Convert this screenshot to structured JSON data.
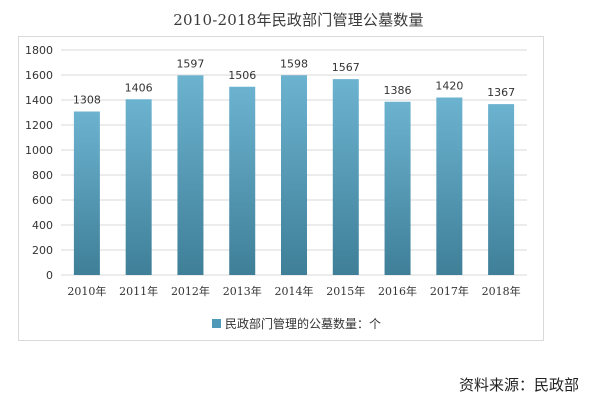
{
  "chart_data": {
    "type": "bar",
    "title": "2010-2018年民政部门管理公墓数量",
    "categories": [
      "2010年",
      "2011年",
      "2012年",
      "2013年",
      "2014年",
      "2015年",
      "2016年",
      "2017年",
      "2018年"
    ],
    "series": [
      {
        "name": "民政部门管理的公墓数量：个",
        "values": [
          1308,
          1406,
          1597,
          1506,
          1598,
          1567,
          1386,
          1420,
          1367
        ]
      }
    ],
    "ylim": [
      0,
      1800
    ],
    "yticks": [
      0,
      200,
      400,
      600,
      800,
      1000,
      1200,
      1400,
      1600,
      1800
    ],
    "grid": true,
    "legend": "bottom",
    "colors": {
      "bar_top": "#6cb3d0",
      "bar_bottom": "#3f7f98",
      "grid": "#d9d9d9"
    }
  },
  "source": "资料来源：民政部"
}
